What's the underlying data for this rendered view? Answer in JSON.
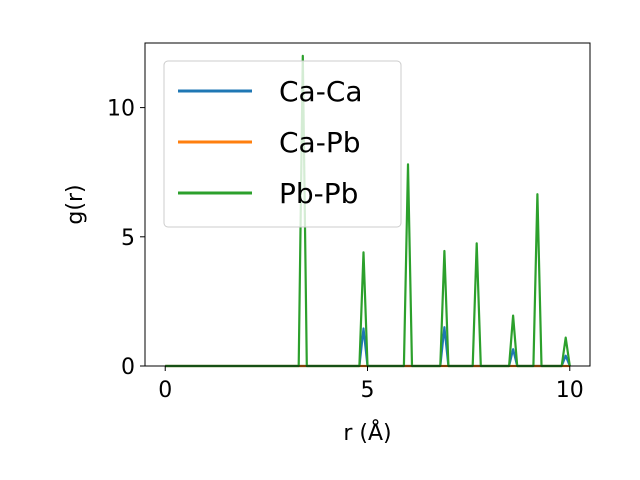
{
  "chart_data": {
    "type": "line",
    "title": "",
    "xlabel": "r (Å)",
    "ylabel": "g(r)",
    "xlim": [
      -0.5,
      10.5
    ],
    "ylim": [
      0,
      12.5
    ],
    "xticks": [
      0,
      5,
      10
    ],
    "yticks": [
      0,
      5,
      10
    ],
    "grid": false,
    "legend_position": "upper-left",
    "series": [
      {
        "name": "Ca-Ca",
        "color": "#1f77b4",
        "x": [
          0.0,
          4.8,
          4.9,
          5.0,
          6.8,
          6.9,
          7.0,
          8.5,
          8.6,
          8.7,
          9.8,
          9.9,
          10.0
        ],
        "y": [
          0.0,
          0.0,
          1.45,
          0.0,
          0.0,
          1.5,
          0.0,
          0.0,
          0.65,
          0.0,
          0.0,
          0.4,
          0.0
        ]
      },
      {
        "name": "Ca-Pb",
        "color": "#ff7f0e",
        "x": [
          0.0,
          10.0
        ],
        "y": [
          0.0,
          0.0
        ]
      },
      {
        "name": "Pb-Pb",
        "color": "#2ca02c",
        "x": [
          0.0,
          3.3,
          3.4,
          3.5,
          4.8,
          4.9,
          5.0,
          5.9,
          6.0,
          6.1,
          6.8,
          6.9,
          7.0,
          7.6,
          7.7,
          7.8,
          8.5,
          8.6,
          8.7,
          9.1,
          9.2,
          9.3,
          9.8,
          9.9,
          10.0
        ],
        "y": [
          0.0,
          0.0,
          12.0,
          0.0,
          0.0,
          4.4,
          0.0,
          0.0,
          7.8,
          0.0,
          0.0,
          4.45,
          0.0,
          0.0,
          4.75,
          0.0,
          0.0,
          1.95,
          0.0,
          0.0,
          6.65,
          0.0,
          0.0,
          1.1,
          0.0
        ]
      }
    ]
  }
}
